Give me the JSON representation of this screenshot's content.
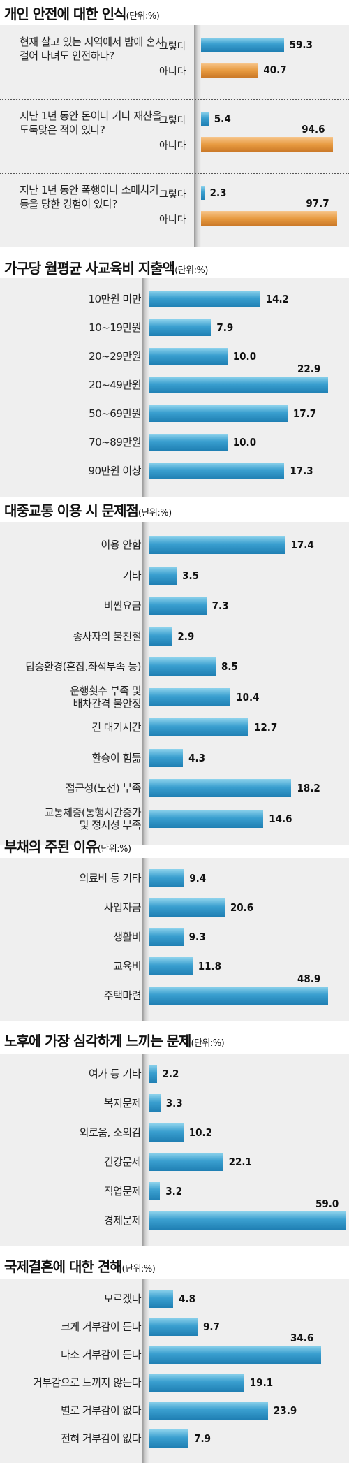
{
  "unit_text": "(단위:%)",
  "chart_data": [
    {
      "type": "bar",
      "title": "개인 안전에 대한 인식",
      "unit": "(단위:%)",
      "questions": [
        {
          "text": "현재 살고 있는 지역에서 밤에 혼자 걸어 다녀도 안전하다?",
          "answers": [
            {
              "label": "그렇다",
              "value": 59.3
            },
            {
              "label": "아니다",
              "value": 40.7
            }
          ]
        },
        {
          "text": "지난 1년 동안 돈이나 기타 재산을 도둑맞은 적이 있다?",
          "answers": [
            {
              "label": "그렇다",
              "value": 5.4
            },
            {
              "label": "아니다",
              "value": 94.6
            }
          ]
        },
        {
          "text": "지난 1년 동안 폭행이나 소매치기 등을 당한 경험이 있다?",
          "answers": [
            {
              "label": "그렇다",
              "value": 2.3
            },
            {
              "label": "아니다",
              "value": 97.7
            }
          ]
        }
      ],
      "colors": {
        "yes": "#2f8fc4",
        "no": "#e08a2e"
      }
    },
    {
      "type": "bar",
      "title": "가구당 월평균 사교육비 지출액",
      "unit": "(단위:%)",
      "categories": [
        "10만원 미만",
        "10~19만원",
        "20~29만원",
        "20~49만원",
        "50~69만원",
        "70~89만원",
        "90만원 이상"
      ],
      "values": [
        14.2,
        7.9,
        10.0,
        22.9,
        17.7,
        10.0,
        17.3
      ]
    },
    {
      "type": "bar",
      "title": "대중교통 이용 시 문제점",
      "unit": "(단위:%)",
      "categories": [
        "이용 안함",
        "기타",
        "비싼요금",
        "종사자의 불친절",
        "탑승환경(혼잡,좌석부족 등)",
        "운행횟수 부족 및\n배차간격 불안정",
        "긴 대기시간",
        "환승이 힘듦",
        "접근성(노선) 부족",
        "교통체증(통행시간증가\n및 정시성 부족"
      ],
      "values": [
        17.4,
        3.5,
        7.3,
        2.9,
        8.5,
        10.4,
        12.7,
        4.3,
        18.2,
        14.6
      ]
    },
    {
      "type": "bar",
      "title": "부채의 주된 이유",
      "unit": "(단위:%)",
      "categories": [
        "의료비 등 기타",
        "사업자금",
        "생활비",
        "교육비",
        "주택마련"
      ],
      "values": [
        9.4,
        20.6,
        9.3,
        11.8,
        48.9
      ]
    },
    {
      "type": "bar",
      "title": "노후에 가장 심각하게 느끼는 문제",
      "unit": "(단위:%)",
      "categories": [
        "여가 등 기타",
        "복지문제",
        "외로움, 소외감",
        "건강문제",
        "직업문제",
        "경제문제"
      ],
      "values": [
        2.2,
        3.3,
        10.2,
        22.1,
        3.2,
        59.0
      ]
    },
    {
      "type": "bar",
      "title": "국제결혼에 대한 견해",
      "unit": "(단위:%)",
      "categories": [
        "모르겠다",
        "크게 거부감이 든다",
        "다소 거부감이 든다",
        "거부감으로 느끼지 않는다",
        "별로 거부감이 없다",
        "전혀 거부감이 없다"
      ],
      "values": [
        4.8,
        9.7,
        34.6,
        19.1,
        23.9,
        7.9
      ]
    }
  ]
}
